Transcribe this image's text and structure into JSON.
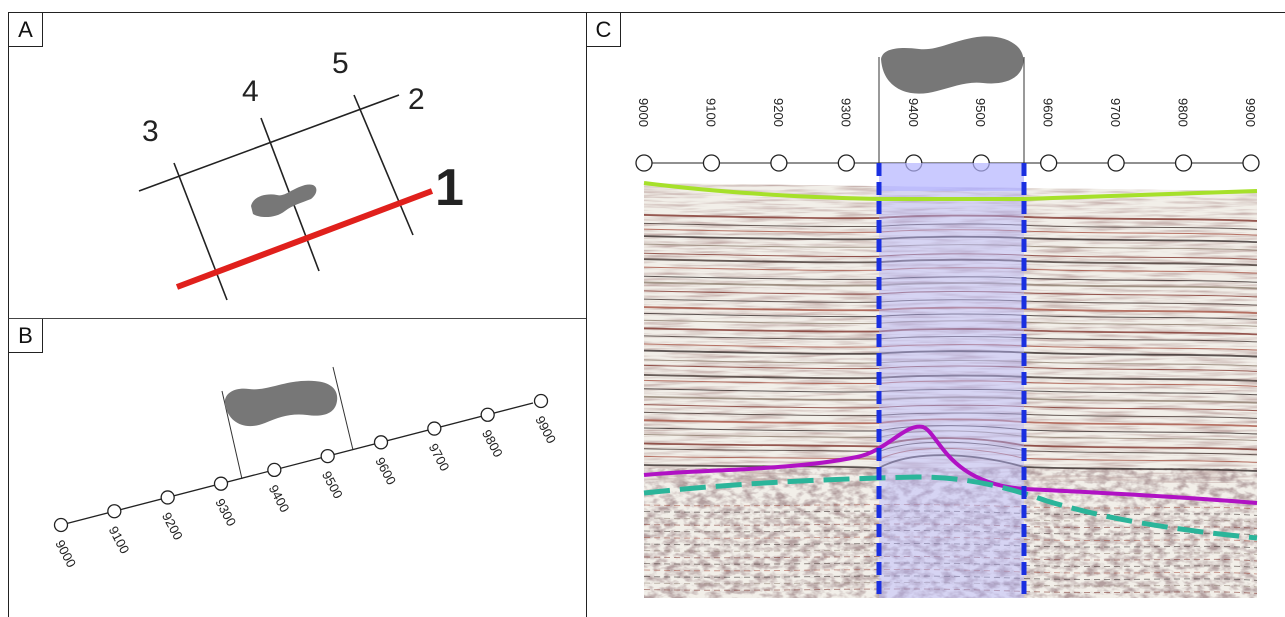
{
  "panels": {
    "a": {
      "label": "A",
      "lines": [
        {
          "number": "3",
          "role": "crossline"
        },
        {
          "number": "4",
          "role": "crossline"
        },
        {
          "number": "5",
          "role": "crossline"
        },
        {
          "number": "2",
          "role": "inline"
        },
        {
          "number": "1",
          "role": "selected-inline"
        }
      ]
    },
    "b": {
      "label": "B",
      "trace_labels": [
        "9000",
        "9100",
        "9200",
        "9300",
        "9400",
        "9500",
        "9600",
        "9700",
        "9800",
        "9900"
      ]
    },
    "c": {
      "label": "C",
      "trace_labels": [
        "9000",
        "9100",
        "9200",
        "9300",
        "9400",
        "9500",
        "9600",
        "9700",
        "9800",
        "9900"
      ]
    }
  },
  "colors": {
    "selected_line": "#e0201c",
    "grid_line": "#222222",
    "anomaly_body": "#777777",
    "seafloor_horizon": "#a6e02a",
    "magenta_horizon": "#b012c4",
    "teal_horizon": "#2bb59a",
    "zone_boundary": "#1a2fe0",
    "zone_fill": "#b4b4ff"
  }
}
